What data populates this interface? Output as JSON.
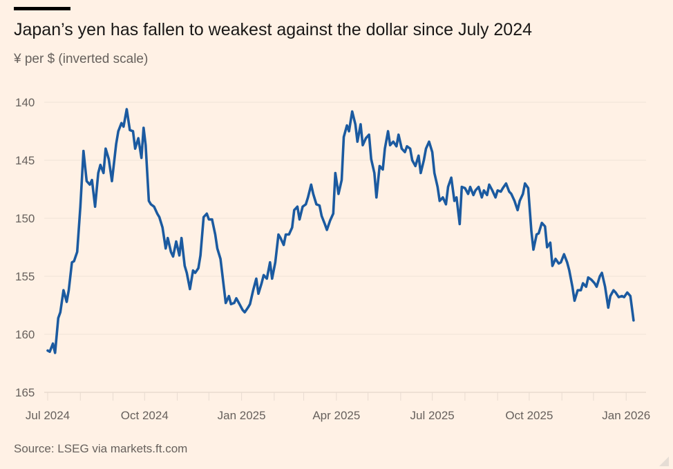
{
  "header": {
    "title": "Japan’s yen has fallen to weakest against the dollar since July 2024",
    "subtitle": "¥ per $ (inverted scale)"
  },
  "footer": {
    "source": "Source: LSEG via markets.ft.com"
  },
  "chart_data": {
    "type": "line",
    "title": "Japan’s yen has fallen to weakest against the dollar since July 2024",
    "ylabel": "¥ per $ (inverted scale)",
    "xlabel": "",
    "x_unit": "days since 2024-07-01",
    "ylim": [
      140,
      165
    ],
    "y_inverted": true,
    "y_ticks": [
      140,
      145,
      150,
      155,
      160,
      165
    ],
    "x_ticks": [
      {
        "day": 0,
        "label": "Jul 2024"
      },
      {
        "day": 92,
        "label": "Oct 2024"
      },
      {
        "day": 184,
        "label": "Jan 2025"
      },
      {
        "day": 274,
        "label": "Apr 2025"
      },
      {
        "day": 365,
        "label": "Jul 2025"
      },
      {
        "day": 457,
        "label": "Oct 2025"
      },
      {
        "day": 549,
        "label": "Jan 2026"
      }
    ],
    "minor_tick_days": [
      31,
      62,
      123,
      153,
      215,
      243,
      304,
      335,
      396,
      427,
      488,
      518
    ],
    "grid": true,
    "color": "#1b5aa0",
    "series": [
      {
        "name": "¥ per $",
        "x": [
          0,
          2,
          5,
          7,
          10,
          12,
          15,
          18,
          20,
          23,
          25,
          28,
          31,
          34,
          37,
          40,
          42,
          45,
          48,
          50,
          53,
          55,
          58,
          61,
          65,
          67,
          70,
          72,
          75,
          78,
          81,
          83,
          86,
          89,
          91,
          93,
          96,
          98,
          101,
          104,
          106,
          109,
          112,
          114,
          117,
          119,
          122,
          125,
          127,
          130,
          132,
          135,
          138,
          140,
          143,
          145,
          148,
          151,
          153,
          156,
          159,
          161,
          164,
          166,
          169,
          172,
          174,
          177,
          179,
          182,
          185,
          187,
          190,
          192,
          195,
          198,
          200,
          203,
          205,
          208,
          211,
          213,
          216,
          219,
          221,
          224,
          226,
          229,
          232,
          234,
          237,
          239,
          242,
          245,
          247,
          250,
          252,
          255,
          258,
          260,
          263,
          265,
          268,
          271,
          273,
          276,
          279,
          281,
          284,
          286,
          289,
          292,
          294,
          297,
          299,
          302,
          305,
          307,
          310,
          312,
          315,
          318,
          320,
          323,
          325,
          328,
          331,
          333,
          336,
          339,
          341,
          344,
          346,
          349,
          352,
          354,
          357,
          359,
          362,
          365,
          367,
          370,
          372,
          375,
          378,
          380,
          383,
          386,
          388,
          391,
          393,
          396,
          399,
          401,
          404,
          406,
          409,
          412,
          414,
          417,
          419,
          422,
          425,
          427,
          430,
          432,
          435,
          438,
          440,
          443,
          446,
          448,
          451,
          453,
          456,
          459,
          461,
          464,
          466,
          469,
          472,
          474,
          477,
          479,
          482,
          485,
          487,
          490,
          493,
          495,
          498,
          500,
          503,
          506,
          508,
          511,
          513,
          516,
          519,
          521,
          524,
          526,
          529,
          532,
          534,
          537,
          539,
          542,
          545,
          547,
          550,
          553,
          555,
          556
        ],
        "values": [
          161.4,
          161.5,
          160.8,
          161.6,
          158.6,
          158.1,
          156.2,
          157.2,
          156.2,
          153.8,
          153.7,
          152.9,
          149.0,
          144.2,
          146.8,
          147.1,
          146.7,
          149.0,
          146.1,
          145.4,
          146.1,
          144.0,
          144.9,
          146.8,
          143.6,
          142.5,
          141.8,
          142.1,
          140.6,
          142.4,
          142.5,
          144.0,
          143.1,
          144.8,
          142.2,
          143.7,
          148.5,
          148.8,
          149.0,
          149.6,
          149.9,
          150.8,
          152.6,
          151.7,
          152.9,
          153.3,
          152.0,
          153.2,
          151.7,
          154.1,
          154.7,
          156.1,
          154.5,
          154.7,
          154.3,
          153.2,
          149.9,
          149.6,
          150.1,
          150.1,
          151.4,
          152.6,
          153.5,
          155.0,
          157.3,
          156.7,
          157.4,
          157.3,
          156.9,
          157.4,
          157.9,
          158.1,
          157.7,
          157.4,
          156.2,
          155.2,
          156.5,
          155.6,
          154.9,
          155.2,
          153.8,
          155.2,
          153.8,
          151.4,
          151.7,
          152.3,
          151.4,
          151.4,
          150.8,
          149.3,
          149.0,
          150.1,
          149.0,
          148.8,
          148.2,
          147.1,
          147.9,
          148.8,
          148.9,
          149.8,
          150.5,
          151.0,
          150.2,
          149.6,
          146.1,
          147.9,
          146.7,
          143.0,
          142.0,
          142.5,
          140.8,
          141.9,
          143.4,
          141.9,
          143.7,
          143.1,
          142.8,
          144.9,
          146.1,
          148.2,
          145.5,
          145.8,
          144.0,
          142.5,
          143.7,
          143.4,
          143.8,
          142.8,
          144.0,
          144.3,
          143.8,
          144.0,
          145.0,
          145.5,
          144.6,
          146.1,
          145.0,
          144.0,
          143.4,
          144.3,
          146.1,
          147.3,
          148.5,
          148.2,
          148.8,
          147.3,
          146.5,
          148.5,
          148.2,
          150.5,
          147.3,
          147.4,
          147.9,
          147.3,
          148.0,
          147.6,
          147.3,
          148.2,
          147.6,
          148.0,
          147.1,
          147.6,
          148.2,
          147.6,
          147.7,
          147.4,
          147.0,
          147.7,
          147.9,
          148.5,
          149.3,
          148.5,
          147.9,
          147.0,
          147.4,
          151.1,
          152.7,
          151.4,
          151.3,
          150.4,
          150.7,
          152.5,
          152.1,
          154.1,
          153.5,
          153.9,
          153.8,
          153.1,
          153.8,
          154.5,
          155.9,
          157.1,
          156.2,
          156.2,
          155.6,
          155.9,
          155.1,
          155.3,
          155.6,
          155.9,
          155.0,
          154.7,
          155.9,
          157.7,
          156.7,
          156.2,
          156.4,
          156.8,
          156.7,
          156.8,
          156.4,
          156.7,
          158.1,
          158.8
        ]
      }
    ]
  }
}
